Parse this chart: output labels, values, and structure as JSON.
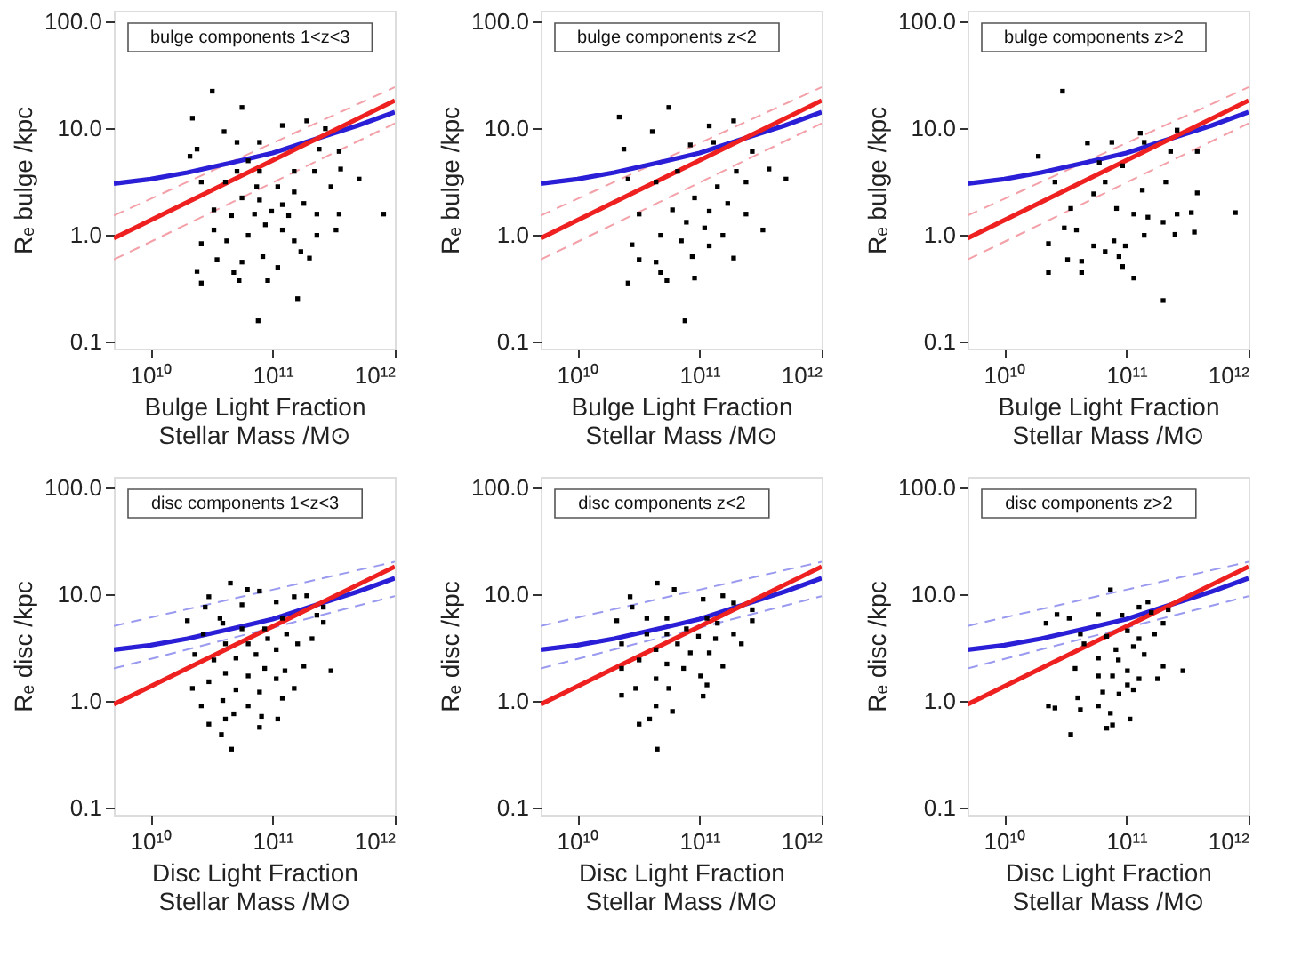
{
  "chart_data": [
    {
      "type": "scatter",
      "annotations": [
        "bulge components 1<z<3"
      ],
      "xlabel": "Bulge Light Fraction\nStellar Mass /M⊙",
      "ylabel": "Rₑ bulge /kpc",
      "xlim": [
        5000000000.0,
        1000000000000.0
      ],
      "ylim": [
        0.085,
        125
      ],
      "log": "xy",
      "grid": false,
      "xticks": [
        {
          "value": 10000000000.0,
          "label": "10¹⁰"
        },
        {
          "value": 100000000000.0,
          "label": "10¹¹"
        },
        {
          "value": 1000000000000.0,
          "label": "10¹²"
        }
      ],
      "yticks": [
        {
          "value": 0.1,
          "label": "0.1"
        },
        {
          "value": 1,
          "label": "1.0"
        },
        {
          "value": 10,
          "label": "10.0"
        },
        {
          "value": 100,
          "label": "100.0"
        }
      ],
      "series": [
        {
          "marker": "square",
          "color": "#000000",
          "x": [
            32000000000.0,
            56000000000.0,
            22000000000.0,
            120000000000.0,
            190000000000.0,
            40000000000.0,
            51000000000.0,
            78000000000.0,
            21000000000.0,
            24000000000.0,
            240000000000.0,
            350000000000.0,
            270000000000.0,
            63000000000.0,
            78000000000.0,
            41000000000.0,
            26000000000.0,
            150000000000.0,
            220000000000.0,
            360000000000.0,
            510000000000.0,
            810000000000.0,
            110000000000.0,
            150000000000.0,
            56000000000.0,
            78000000000.0,
            33000000000.0,
            46000000000.0,
            71000000000.0,
            98000000000.0,
            135000000000.0,
            180000000000.0,
            230000000000.0,
            87000000000.0,
            120000000000.0,
            63000000000.0,
            42000000000.0,
            26000000000.0,
            33000000000.0,
            150000000000.0,
            230000000000.0,
            330000000000.0,
            83000000000.0,
            56000000000.0,
            35000000000.0,
            200000000000.0,
            110000000000.0,
            48000000000.0,
            24000000000.0,
            26000000000.0,
            91000000000.0,
            53000000000.0,
            160000000000.0,
            76000000000.0,
            120000000000.0,
            51000000000.0,
            300000000000.0,
            74000000000.0,
            170000000000.0,
            350000000000.0
          ],
          "values": [
            22,
            15.5,
            12.3,
            10.5,
            11.6,
            9.2,
            7.3,
            7.3,
            5.4,
            6.3,
            6.3,
            6.0,
            9.8,
            4.9,
            3.9,
            3.1,
            3.1,
            3.9,
            3.9,
            4.1,
            3.3,
            1.55,
            2.8,
            2.5,
            2.2,
            2.1,
            1.7,
            1.5,
            1.55,
            1.65,
            1.5,
            1.95,
            1.55,
            1.23,
            1.1,
            0.98,
            0.87,
            0.82,
            1.1,
            0.87,
            0.98,
            1.1,
            0.62,
            0.55,
            0.58,
            0.6,
            0.49,
            0.44,
            0.45,
            0.35,
            0.37,
            0.37,
            0.25,
            0.155,
            1.9,
            3.9,
            2.8,
            2.8,
            0.69,
            1.55
          ]
        },
        {
          "type": "line",
          "line_style": "dashed",
          "color": "#f4a0a8",
          "x": [
            5000000000.0,
            1000000000000.0
          ],
          "values": [
            1.5,
            24
          ]
        },
        {
          "type": "line",
          "line_style": "dashed",
          "color": "#f4a0a8",
          "x": [
            5000000000.0,
            1000000000000.0
          ],
          "values": [
            0.58,
            11
          ]
        },
        {
          "type": "line",
          "line_style": "solid",
          "color": "#2a1fd6",
          "x": [
            5000000000.0,
            10000000000.0,
            20000000000.0,
            50000000000.0,
            100000000000.0,
            200000000000.0,
            500000000000.0,
            1000000000000.0
          ],
          "values": [
            3.0,
            3.3,
            3.8,
            4.8,
            5.8,
            7.5,
            10.5,
            14
          ]
        },
        {
          "type": "line",
          "line_style": "solid",
          "color": "#ee2020",
          "x": [
            5000000000.0,
            1000000000000.0
          ],
          "values": [
            0.92,
            18
          ]
        }
      ]
    },
    {
      "type": "scatter",
      "annotations": [
        "bulge components z<2"
      ],
      "xlabel": "Bulge Light Fraction\nStellar Mass /M⊙",
      "ylabel": "Rₑ bulge /kpc",
      "xlim": [
        5000000000.0,
        1000000000000.0
      ],
      "ylim": [
        0.085,
        125
      ],
      "log": "xy",
      "grid": false,
      "xticks": [
        {
          "value": 10000000000.0,
          "label": "10¹⁰"
        },
        {
          "value": 100000000000.0,
          "label": "10¹¹"
        },
        {
          "value": 1000000000000.0,
          "label": "10¹²"
        }
      ],
      "yticks": [
        {
          "value": 0.1,
          "label": "0.1"
        },
        {
          "value": 1,
          "label": "1.0"
        },
        {
          "value": 10,
          "label": "10.0"
        },
        {
          "value": 100,
          "label": "100.0"
        }
      ],
      "series": [
        {
          "marker": "square",
          "color": "#000000",
          "x": [
            22000000000.0,
            56000000000.0,
            41000000000.0,
            24000000000.0,
            120000000000.0,
            190000000000.0,
            84000000000.0,
            130000000000.0,
            270000000000.0,
            370000000000.0,
            510000000000.0,
            66000000000.0,
            44000000000.0,
            26000000000.0,
            140000000000.0,
            200000000000.0,
            91000000000.0,
            60000000000.0,
            120000000000.0,
            170000000000.0,
            240000000000.0,
            78000000000.0,
            110000000000.0,
            32000000000.0,
            48000000000.0,
            71000000000.0,
            155000000000.0,
            330000000000.0,
            28000000000.0,
            87000000000.0,
            190000000000.0,
            44000000000.0,
            32000000000.0,
            48000000000.0,
            91000000000.0,
            54000000000.0,
            26000000000.0,
            76000000000.0,
            120000000000.0,
            240000000000.0
          ],
          "values": [
            12.6,
            15.5,
            9.2,
            6.3,
            10.4,
            11.6,
            6.9,
            7.3,
            6.0,
            4.1,
            3.3,
            3.9,
            3.1,
            3.3,
            2.8,
            3.9,
            2.2,
            1.7,
            1.65,
            1.95,
            1.55,
            1.3,
            1.15,
            1.55,
            0.98,
            0.87,
            0.98,
            1.1,
            0.8,
            0.62,
            0.6,
            0.55,
            0.58,
            0.44,
            0.39,
            0.37,
            0.35,
            0.155,
            0.78,
            3.1
          ]
        },
        {
          "type": "line",
          "line_style": "dashed",
          "color": "#f4a0a8",
          "x": [
            5000000000.0,
            1000000000000.0
          ],
          "values": [
            1.5,
            24
          ]
        },
        {
          "type": "line",
          "line_style": "dashed",
          "color": "#f4a0a8",
          "x": [
            5000000000.0,
            1000000000000.0
          ],
          "values": [
            0.58,
            11
          ]
        },
        {
          "type": "line",
          "line_style": "solid",
          "color": "#2a1fd6",
          "x": [
            5000000000.0,
            10000000000.0,
            20000000000.0,
            50000000000.0,
            100000000000.0,
            200000000000.0,
            500000000000.0,
            1000000000000.0
          ],
          "values": [
            3.0,
            3.3,
            3.8,
            4.8,
            5.8,
            7.5,
            10.5,
            14
          ]
        },
        {
          "type": "line",
          "line_style": "solid",
          "color": "#ee2020",
          "x": [
            5000000000.0,
            1000000000000.0
          ],
          "values": [
            0.92,
            18
          ]
        }
      ]
    },
    {
      "type": "scatter",
      "annotations": [
        "bulge components z>2"
      ],
      "xlabel": "Bulge Light Fraction\nStellar Mass /M⊙",
      "ylabel": "Rₑ bulge /kpc",
      "xlim": [
        5000000000.0,
        1000000000000.0
      ],
      "ylim": [
        0.085,
        125
      ],
      "log": "xy",
      "grid": false,
      "xticks": [
        {
          "value": 10000000000.0,
          "label": "10¹⁰"
        },
        {
          "value": 100000000000.0,
          "label": "10¹¹"
        },
        {
          "value": 1000000000000.0,
          "label": "10¹²"
        }
      ],
      "yticks": [
        {
          "value": 0.1,
          "label": "0.1"
        },
        {
          "value": 1,
          "label": "1.0"
        },
        {
          "value": 10,
          "label": "10.0"
        },
        {
          "value": 100,
          "label": "100.0"
        }
      ],
      "series": [
        {
          "marker": "square",
          "color": "#000000",
          "x": [
            30000000000.0,
            19000000000.0,
            48000000000.0,
            76000000000.0,
            130000000000.0,
            260000000000.0,
            230000000000.0,
            380000000000.0,
            60000000000.0,
            93000000000.0,
            26000000000.0,
            67000000000.0,
            135000000000.0,
            210000000000.0,
            380000000000.0,
            54000000000.0,
            35000000000.0,
            83000000000.0,
            115000000000.0,
            150000000000.0,
            200000000000.0,
            260000000000.0,
            340000000000.0,
            780000000000.0,
            31000000000.0,
            39000000000.0,
            79000000000.0,
            98000000000.0,
            140000000000.0,
            250000000000.0,
            360000000000.0,
            54000000000.0,
            23000000000.0,
            87000000000.0,
            67000000000.0,
            33000000000.0,
            43000000000.0,
            93000000000.0,
            23000000000.0,
            43000000000.0,
            115000000000.0,
            200000000000.0,
            140000000000.0
          ],
          "values": [
            22,
            5.4,
            7.2,
            7.3,
            8.9,
            9.5,
            6.0,
            6.0,
            4.7,
            4.4,
            3.1,
            3.1,
            2.6,
            3.1,
            2.45,
            2.4,
            1.75,
            1.75,
            1.55,
            1.45,
            1.3,
            1.55,
            1.6,
            1.6,
            1.15,
            1.1,
            0.87,
            0.78,
            0.98,
            1.0,
            1.05,
            0.78,
            0.82,
            0.62,
            0.69,
            0.58,
            0.56,
            0.5,
            0.44,
            0.44,
            0.39,
            0.24,
            7.3
          ]
        },
        {
          "type": "line",
          "line_style": "dashed",
          "color": "#f4a0a8",
          "x": [
            5000000000.0,
            1000000000000.0
          ],
          "values": [
            1.5,
            24
          ]
        },
        {
          "type": "line",
          "line_style": "dashed",
          "color": "#f4a0a8",
          "x": [
            5000000000.0,
            1000000000000.0
          ],
          "values": [
            0.58,
            11
          ]
        },
        {
          "type": "line",
          "line_style": "solid",
          "color": "#2a1fd6",
          "x": [
            5000000000.0,
            10000000000.0,
            20000000000.0,
            50000000000.0,
            100000000000.0,
            200000000000.0,
            500000000000.0,
            1000000000000.0
          ],
          "values": [
            3.0,
            3.3,
            3.8,
            4.8,
            5.8,
            7.5,
            10.5,
            14
          ]
        },
        {
          "type": "line",
          "line_style": "solid",
          "color": "#ee2020",
          "x": [
            5000000000.0,
            1000000000000.0
          ],
          "values": [
            0.92,
            18
          ]
        }
      ]
    },
    {
      "type": "scatter",
      "annotations": [
        "disc components 1<z<3"
      ],
      "xlabel": "Disc Light Fraction\nStellar Mass /M⊙",
      "ylabel": "Rₑ disc /kpc",
      "xlim": [
        5000000000.0,
        1000000000000.0
      ],
      "ylim": [
        0.085,
        125
      ],
      "log": "xy",
      "grid": false,
      "xticks": [
        {
          "value": 10000000000.0,
          "label": "10¹⁰"
        },
        {
          "value": 100000000000.0,
          "label": "10¹¹"
        },
        {
          "value": 1000000000000.0,
          "label": "10¹²"
        }
      ],
      "yticks": [
        {
          "value": 0.1,
          "label": "0.1"
        },
        {
          "value": 1,
          "label": "1.0"
        },
        {
          "value": 10,
          "label": "10.0"
        },
        {
          "value": 100,
          "label": "100.0"
        }
      ],
      "series": [
        {
          "marker": "square",
          "color": "#000000",
          "x": [
            45000000000.0,
            62000000000.0,
            78000000000.0,
            30000000000.0,
            28000000000.0,
            20000000000.0,
            37000000000.0,
            56000000000.0,
            107000000000.0,
            150000000000.0,
            190000000000.0,
            260000000000.0,
            230000000000.0,
            260000000000.0,
            120000000000.0,
            86000000000.0,
            56000000000.0,
            39000000000.0,
            27000000000.0,
            41000000000.0,
            63000000000.0,
            91000000000.0,
            130000000000.0,
            160000000000.0,
            210000000000.0,
            107000000000.0,
            73000000000.0,
            50000000000.0,
            33000000000.0,
            23000000000.0,
            86000000000.0,
            126000000000.0,
            180000000000.0,
            300000000000.0,
            41000000000.0,
            63000000000.0,
            107000000000.0,
            30000000000.0,
            22000000000.0,
            50000000000.0,
            78000000000.0,
            150000000000.0,
            39000000000.0,
            63000000000.0,
            120000000000.0,
            26000000000.0,
            48000000000.0,
            30000000000.0,
            41000000000.0,
            81000000000.0,
            110000000000.0,
            78000000000.0,
            38000000000.0,
            46000000000.0
          ],
          "values": [
            12.6,
            11,
            10.6,
            9.4,
            7.5,
            5.6,
            5.9,
            7.9,
            8.4,
            9.4,
            9.6,
            7.5,
            6.3,
            5.4,
            5.9,
            4.7,
            4.7,
            5.3,
            4.2,
            3.4,
            3.4,
            3.8,
            4.2,
            3.4,
            3.8,
            3.0,
            2.7,
            2.5,
            2.4,
            2.7,
            2.0,
            1.9,
            2.1,
            1.9,
            1.8,
            1.7,
            1.6,
            1.5,
            1.3,
            1.26,
            1.2,
            1.3,
            1.0,
            0.89,
            1.05,
            0.89,
            0.75,
            0.6,
            0.67,
            0.71,
            0.67,
            0.56,
            0.48,
            0.35
          ]
        },
        {
          "type": "line",
          "line_style": "dashed",
          "color": "#9a9af0",
          "x": [
            5000000000.0,
            1000000000000.0
          ],
          "values": [
            5.0,
            20
          ]
        },
        {
          "type": "line",
          "line_style": "dashed",
          "color": "#9a9af0",
          "x": [
            5000000000.0,
            1000000000000.0
          ],
          "values": [
            2.0,
            9.5
          ]
        },
        {
          "type": "line",
          "line_style": "solid",
          "color": "#2a1fd6",
          "x": [
            5000000000.0,
            10000000000.0,
            20000000000.0,
            50000000000.0,
            100000000000.0,
            200000000000.0,
            500000000000.0,
            1000000000000.0
          ],
          "values": [
            3.0,
            3.3,
            3.8,
            4.8,
            5.8,
            7.5,
            10.5,
            14
          ]
        },
        {
          "type": "line",
          "line_style": "solid",
          "color": "#ee2020",
          "x": [
            5000000000.0,
            1000000000000.0
          ],
          "values": [
            0.92,
            18
          ]
        }
      ]
    },
    {
      "type": "scatter",
      "annotations": [
        "disc components z<2"
      ],
      "xlabel": "Disc Light Fraction\nStellar Mass /M⊙",
      "ylabel": "Rₑ disc /kpc",
      "xlim": [
        5000000000.0,
        1000000000000.0
      ],
      "ylim": [
        0.085,
        125
      ],
      "log": "xy",
      "grid": false,
      "xticks": [
        {
          "value": 10000000000.0,
          "label": "10¹⁰"
        },
        {
          "value": 100000000000.0,
          "label": "10¹¹"
        },
        {
          "value": 1000000000000.0,
          "label": "10¹²"
        }
      ],
      "yticks": [
        {
          "value": 0.1,
          "label": "0.1"
        },
        {
          "value": 1,
          "label": "1.0"
        },
        {
          "value": 10,
          "label": "10.0"
        },
        {
          "value": 100,
          "label": "100.0"
        }
      ],
      "series": [
        {
          "marker": "square",
          "color": "#000000",
          "x": [
            45000000000.0,
            62000000000.0,
            27000000000.0,
            28000000000.0,
            21000000000.0,
            37000000000.0,
            54000000000.0,
            107000000000.0,
            155000000000.0,
            190000000000.0,
            270000000000.0,
            270000000000.0,
            115000000000.0,
            140000000000.0,
            78000000000.0,
            54000000000.0,
            37000000000.0,
            23000000000.0,
            66000000000.0,
            98000000000.0,
            135000000000.0,
            190000000000.0,
            220000000000.0,
            44000000000.0,
            84000000000.0,
            120000000000.0,
            32000000000.0,
            54000000000.0,
            155000000000.0,
            74000000000.0,
            23000000000.0,
            102000000000.0,
            44000000000.0,
            30000000000.0,
            56000000000.0,
            115000000000.0,
            23000000000.0,
            107000000000.0,
            44000000000.0,
            60000000000.0,
            39000000000.0,
            32000000000.0,
            45000000000.0
          ],
          "values": [
            12.6,
            11,
            9.4,
            7.5,
            5.6,
            5.9,
            5.9,
            8.9,
            9.6,
            8.2,
            7.1,
            5.6,
            5.9,
            5.3,
            4.7,
            4.2,
            4.2,
            3.4,
            3.4,
            4.0,
            3.8,
            4.2,
            3.4,
            3.0,
            2.8,
            2.8,
            2.4,
            2.2,
            2.1,
            2.0,
            2.0,
            1.7,
            1.6,
            1.3,
            1.3,
            1.4,
            1.12,
            1.1,
            0.89,
            0.79,
            0.67,
            0.6,
            0.35
          ]
        },
        {
          "type": "line",
          "line_style": "dashed",
          "color": "#9a9af0",
          "x": [
            5000000000.0,
            1000000000000.0
          ],
          "values": [
            5.0,
            20
          ]
        },
        {
          "type": "line",
          "line_style": "dashed",
          "color": "#9a9af0",
          "x": [
            5000000000.0,
            1000000000000.0
          ],
          "values": [
            2.0,
            9.5
          ]
        },
        {
          "type": "line",
          "line_style": "solid",
          "color": "#2a1fd6",
          "x": [
            5000000000.0,
            10000000000.0,
            20000000000.0,
            50000000000.0,
            100000000000.0,
            200000000000.0,
            500000000000.0,
            1000000000000.0
          ],
          "values": [
            3.0,
            3.3,
            3.8,
            4.8,
            5.8,
            7.5,
            10.5,
            14
          ]
        },
        {
          "type": "line",
          "line_style": "solid",
          "color": "#ee2020",
          "x": [
            5000000000.0,
            1000000000000.0
          ],
          "values": [
            0.92,
            18
          ]
        }
      ]
    },
    {
      "type": "scatter",
      "annotations": [
        "disc components z>2"
      ],
      "xlabel": "Disc Light Fraction\nStellar Mass /M⊙",
      "ylabel": "Rₑ disc /kpc",
      "xlim": [
        5000000000.0,
        1000000000000.0
      ],
      "ylim": [
        0.085,
        125
      ],
      "log": "xy",
      "grid": false,
      "xticks": [
        {
          "value": 10000000000.0,
          "label": "10¹⁰"
        },
        {
          "value": 100000000000.0,
          "label": "10¹¹"
        },
        {
          "value": 1000000000000.0,
          "label": "10¹²"
        }
      ],
      "yticks": [
        {
          "value": 0.1,
          "label": "0.1"
        },
        {
          "value": 1,
          "label": "1.0"
        },
        {
          "value": 10,
          "label": "10.0"
        },
        {
          "value": 100,
          "label": "100.0"
        }
      ],
      "series": [
        {
          "marker": "square",
          "color": "#000000",
          "x": [
            74000000000.0,
            22000000000.0,
            27000000000.0,
            34000000000.0,
            59000000000.0,
            92000000000.0,
            127000000000.0,
            150000000000.0,
            160000000000.0,
            220000000000.0,
            200000000000.0,
            42000000000.0,
            69000000000.0,
            102000000000.0,
            127000000000.0,
            170000000000.0,
            45000000000.0,
            82000000000.0,
            114000000000.0,
            59000000000.0,
            86000000000.0,
            140000000000.0,
            200000000000.0,
            38000000000.0,
            102000000000.0,
            290000000000.0,
            59000000000.0,
            77000000000.0,
            127000000000.0,
            180000000000.0,
            102000000000.0,
            64000000000.0,
            114000000000.0,
            87000000000.0,
            40000000000.0,
            23000000000.0,
            26000000000.0,
            42000000000.0,
            59000000000.0,
            74000000000.0,
            77000000000.0,
            69000000000.0,
            107000000000.0,
            35000000000.0
          ],
          "values": [
            10.9,
            5.3,
            6.4,
            5.9,
            6.4,
            6.3,
            7.5,
            8.4,
            6.7,
            7.1,
            5.3,
            4.2,
            4.0,
            4.5,
            3.8,
            4.2,
            3.4,
            3.0,
            3.2,
            2.5,
            2.4,
            2.7,
            2.1,
            2.0,
            1.9,
            1.9,
            1.7,
            1.7,
            1.6,
            1.6,
            1.4,
            1.2,
            1.26,
            1.15,
            1.06,
            0.89,
            0.85,
            0.82,
            0.89,
            0.76,
            0.59,
            0.55,
            0.67,
            0.48
          ]
        },
        {
          "type": "line",
          "line_style": "dashed",
          "color": "#9a9af0",
          "x": [
            5000000000.0,
            1000000000000.0
          ],
          "values": [
            5.0,
            20
          ]
        },
        {
          "type": "line",
          "line_style": "dashed",
          "color": "#9a9af0",
          "x": [
            5000000000.0,
            1000000000000.0
          ],
          "values": [
            2.0,
            9.5
          ]
        },
        {
          "type": "line",
          "line_style": "solid",
          "color": "#2a1fd6",
          "x": [
            5000000000.0,
            10000000000.0,
            20000000000.0,
            50000000000.0,
            100000000000.0,
            200000000000.0,
            500000000000.0,
            1000000000000.0
          ],
          "values": [
            3.0,
            3.3,
            3.8,
            4.8,
            5.8,
            7.5,
            10.5,
            14
          ]
        },
        {
          "type": "line",
          "line_style": "solid",
          "color": "#ee2020",
          "x": [
            5000000000.0,
            1000000000000.0
          ],
          "values": [
            0.92,
            18
          ]
        }
      ]
    }
  ]
}
